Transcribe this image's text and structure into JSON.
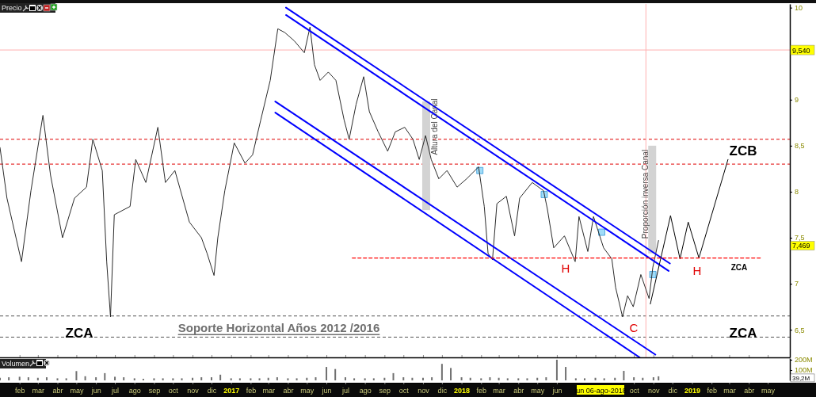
{
  "chart_data": [
    {
      "type": "line",
      "title": "Precio",
      "xlim": [
        "2016-01-01",
        "2019-06-05"
      ],
      "ylim": [
        6.2,
        10.04
      ],
      "yticks": [
        {
          "value": 6.5,
          "label": "6,5"
        },
        7,
        {
          "value": 7.5,
          "label": "7,5"
        },
        8,
        {
          "value": 8.5,
          "label": "8,5"
        },
        9,
        10
      ],
      "tick_labels": "y",
      "xticks": [
        {
          "value": "2016-02-01",
          "label": null
        },
        {
          "value": "2016-03-01",
          "label": null
        },
        {
          "value": "2016-04-01",
          "label": null
        },
        {
          "value": "2016-05-01",
          "label": null
        },
        {
          "value": "2016-06-01",
          "label": null
        },
        {
          "value": "2016-07-01",
          "label": null
        },
        {
          "value": "2016-08-01",
          "label": null
        },
        {
          "value": "2016-09-01",
          "label": null
        },
        {
          "value": "2016-10-01",
          "label": null
        },
        {
          "value": "2016-11-01",
          "label": null
        },
        {
          "value": "2016-12-01",
          "label": null
        },
        {
          "value": "2017-01-01",
          "label": null
        },
        {
          "value": "2017-02-01",
          "label": null
        },
        {
          "value": "2017-03-01",
          "label": null
        },
        {
          "value": "2017-04-01",
          "label": null
        },
        {
          "value": "2017-05-01",
          "label": null
        },
        {
          "value": "2017-06-01",
          "label": null
        },
        {
          "value": "2017-07-01",
          "label": null
        },
        {
          "value": "2017-08-01",
          "label": null
        },
        {
          "value": "2017-09-01",
          "label": null
        },
        {
          "value": "2017-10-01",
          "label": null
        },
        {
          "value": "2017-11-01",
          "label": null
        },
        {
          "value": "2017-12-01",
          "label": null
        },
        {
          "value": "2018-01-01",
          "label": null
        },
        {
          "value": "2018-02-01",
          "label": null
        },
        {
          "value": "2018-03-01",
          "label": null
        },
        {
          "value": "2018-04-01",
          "label": null
        },
        {
          "value": "2018-05-01",
          "label": null
        },
        {
          "value": "2018-06-01",
          "label": null
        },
        {
          "value": "2018-07-01",
          "label": null
        },
        {
          "value": "2018-08-01",
          "label": null
        },
        {
          "value": "2018-09-01",
          "label": null
        },
        {
          "value": "2018-10-01",
          "label": null
        },
        {
          "value": "2018-11-01",
          "label": null
        },
        {
          "value": "2018-12-01",
          "label": null
        },
        {
          "value": "2019-01-01",
          "label": null
        },
        {
          "value": "2019-02-01",
          "label": null
        },
        {
          "value": "2019-03-01",
          "label": null
        },
        {
          "value": "2019-04-01",
          "label": null
        },
        {
          "value": "2019-05-01",
          "label": null
        }
      ],
      "series": [
        {
          "type": "bar",
          "color": "#d3d3d3",
          "x": [
            "2017-11-06",
            "2018-10-30"
          ],
          "base": [
            7.8,
            7.33
          ],
          "values": [
            1.18,
            1.17
          ]
        },
        {
          "type": "scatter",
          "marker": "square",
          "color": "#a0dcf8",
          "x": [
            "2018-01-30",
            "2018-05-12",
            "2018-08-11",
            "2018-10-31"
          ],
          "values": [
            8.23,
            7.97,
            7.56,
            7.1
          ]
        },
        {
          "type": "line",
          "color": "#2b2b2b",
          "x": [
            "2016-01-01",
            "2016-01-12",
            "2016-02-04",
            "2016-02-19",
            "2016-03-09",
            "2016-03-21",
            "2016-04-09",
            "2016-04-28",
            "2016-05-17",
            "2016-05-27",
            "2016-06-11",
            "2016-06-18",
            "2016-06-24",
            "2016-06-30",
            "2016-07-25",
            "2016-08-03",
            "2016-08-19",
            "2016-09-07",
            "2016-09-19",
            "2016-10-04",
            "2016-10-27",
            "2016-11-15",
            "2016-11-24",
            "2016-12-05",
            "2016-12-11",
            "2016-12-22",
            "2017-01-06",
            "2017-01-23",
            "2017-02-04",
            "2017-02-17",
            "2017-03-04",
            "2017-03-16",
            "2017-03-27",
            "2017-04-11",
            "2017-04-27",
            "2017-05-06",
            "2017-05-13",
            "2017-05-22",
            "2017-06-04",
            "2017-06-16",
            "2017-06-29",
            "2017-07-07",
            "2017-07-18",
            "2017-07-30",
            "2017-08-08",
            "2017-08-22",
            "2017-09-06",
            "2017-09-18",
            "2017-10-03",
            "2017-10-16",
            "2017-10-26",
            "2017-11-05",
            "2017-11-14",
            "2017-11-26",
            "2017-12-09",
            "2017-12-25",
            "2018-01-09",
            "2018-01-28",
            "2018-02-06",
            "2018-02-12",
            "2018-02-19",
            "2018-02-26",
            "2018-03-13",
            "2018-03-26",
            "2018-04-03",
            "2018-04-23",
            "2018-05-11",
            "2018-05-17",
            "2018-05-27",
            "2018-06-13",
            "2018-06-30",
            "2018-07-06",
            "2018-07-20",
            "2018-07-29",
            "2018-08-14",
            "2018-08-27",
            "2018-09-02",
            "2018-09-13",
            "2018-09-21",
            "2018-09-30",
            "2018-10-12",
            "2018-10-25",
            "2018-10-31",
            "2018-11-09"
          ],
          "values": [
            8.48,
            7.93,
            7.24,
            8.01,
            8.83,
            8.18,
            7.5,
            7.93,
            8.05,
            8.57,
            8.23,
            7.24,
            6.64,
            7.75,
            7.84,
            8.35,
            8.1,
            8.7,
            8.1,
            8.23,
            7.67,
            7.5,
            7.33,
            7.09,
            7.5,
            8.01,
            8.53,
            8.31,
            8.4,
            8.78,
            9.21,
            9.77,
            9.73,
            9.64,
            9.51,
            9.79,
            9.38,
            9.21,
            9.3,
            9.21,
            8.78,
            8.57,
            8.95,
            9.25,
            8.87,
            8.65,
            8.44,
            8.65,
            8.7,
            8.57,
            8.35,
            8.61,
            8.35,
            8.14,
            8.23,
            8.05,
            8.14,
            8.27,
            7.84,
            7.33,
            7.26,
            7.87,
            7.95,
            7.52,
            7.93,
            8.1,
            8.01,
            7.81,
            7.39,
            7.52,
            7.24,
            7.73,
            7.35,
            7.73,
            7.39,
            7.27,
            6.96,
            6.64,
            6.87,
            6.75,
            7.1,
            6.84,
            7.18,
            7.47
          ]
        },
        {
          "type": "line",
          "color": "#0000ff",
          "x": [
            "2017-03-29",
            "2018-11-27"
          ],
          "values": [
            10.0,
            7.22
          ]
        },
        {
          "type": "line",
          "color": "#0000ff",
          "x": [
            "2017-03-29",
            "2018-11-25"
          ],
          "values": [
            9.92,
            7.14
          ]
        },
        {
          "type": "line",
          "color": "#0000ff",
          "x": [
            "2017-03-12",
            "2018-11-04"
          ],
          "values": [
            8.98,
            6.23
          ]
        },
        {
          "type": "line",
          "color": "#0000ff",
          "x": [
            "2017-03-12",
            "2018-10-10"
          ],
          "values": [
            8.86,
            6.2
          ]
        },
        {
          "type": "line",
          "color": "#000000",
          "x": [
            "2018-10-27",
            "2018-11-28",
            "2018-12-13",
            "2018-12-26",
            "2019-01-12",
            "2019-02-27"
          ],
          "values": [
            6.78,
            7.74,
            7.27,
            7.67,
            7.28,
            8.35
          ]
        },
        {
          "type": "line",
          "color": "#ff0000",
          "line_style": "dashed",
          "x": [
            "2017-07-12",
            "2019-04-22"
          ],
          "values": [
            7.28,
            7.28
          ]
        }
      ],
      "ref_lines": [
        {
          "axis": "y",
          "value": 8.57,
          "color": "#e00000",
          "line_style": "dashed"
        },
        {
          "axis": "y",
          "value": 8.3,
          "color": "#e00000",
          "line_style": "dashed"
        },
        {
          "axis": "y",
          "value": 6.65,
          "color": "#555555",
          "line_style": "dashed"
        },
        {
          "axis": "y",
          "value": 6.42,
          "color": "#555555",
          "line_style": "dashed"
        },
        {
          "axis": "y",
          "value": 9.54,
          "color": "#ffb0b0",
          "label": "9,540"
        },
        {
          "axis": "x",
          "value": "2018-10-20",
          "color": "#ffb0b0"
        }
      ],
      "annotations": [
        "ZCB",
        "ZCA",
        "Soporte Horizontal Años  2012 /2016",
        "H",
        "C",
        "H",
        "ZCA",
        "ZCA",
        "Altura del Canal",
        "Proporción inversa Canal",
        "7,469"
      ]
    },
    {
      "type": "bar",
      "title": "Volumen",
      "color": "#707070",
      "xlim": [
        "2016-01-01",
        "2019-06-05"
      ],
      "ylim": [
        0,
        215
      ],
      "yticks": [
        {
          "value": 100,
          "label": "100M"
        },
        {
          "value": 200,
          "label": "200M"
        }
      ],
      "xticks": [
        {
          "value": "2016-02-01",
          "label": "feb"
        },
        {
          "value": "2016-03-01",
          "label": "mar"
        },
        {
          "value": "2016-04-01",
          "label": "abr"
        },
        {
          "value": "2016-05-01",
          "label": "may"
        },
        {
          "value": "2016-06-01",
          "label": "jun"
        },
        {
          "value": "2016-07-01",
          "label": "jul"
        },
        {
          "value": "2016-08-01",
          "label": "ago"
        },
        {
          "value": "2016-09-01",
          "label": "sep"
        },
        {
          "value": "2016-10-01",
          "label": "oct"
        },
        {
          "value": "2016-11-01",
          "label": "nov"
        },
        {
          "value": "2016-12-01",
          "label": "dic"
        },
        {
          "value": "2017-01-01",
          "label": "2017"
        },
        {
          "value": "2017-02-01",
          "label": "feb"
        },
        {
          "value": "2017-03-01",
          "label": "mar"
        },
        {
          "value": "2017-04-01",
          "label": "abr"
        },
        {
          "value": "2017-05-01",
          "label": "may"
        },
        {
          "value": "2017-06-01",
          "label": "jun"
        },
        {
          "value": "2017-07-01",
          "label": "jul"
        },
        {
          "value": "2017-08-01",
          "label": "ago"
        },
        {
          "value": "2017-09-01",
          "label": "sep"
        },
        {
          "value": "2017-10-01",
          "label": "oct"
        },
        {
          "value": "2017-11-01",
          "label": "nov"
        },
        {
          "value": "2017-12-01",
          "label": "dic"
        },
        {
          "value": "2018-01-01",
          "label": "2018"
        },
        {
          "value": "2018-02-01",
          "label": "feb"
        },
        {
          "value": "2018-03-01",
          "label": "mar"
        },
        {
          "value": "2018-04-01",
          "label": "abr"
        },
        {
          "value": "2018-05-01",
          "label": "may"
        },
        {
          "value": "2018-06-01",
          "label": "jun"
        },
        {
          "value": "2018-10-01",
          "label": "oct"
        },
        {
          "value": "2018-11-01",
          "label": "nov"
        },
        {
          "value": "2018-12-01",
          "label": "dic"
        },
        {
          "value": "2019-01-01",
          "label": "2019"
        },
        {
          "value": "2019-02-01",
          "label": "feb"
        },
        {
          "value": "2019-03-01",
          "label": "mar"
        },
        {
          "value": "2019-04-01",
          "label": "abr"
        },
        {
          "value": "2019-05-01",
          "label": "may"
        }
      ],
      "x": [
        "2016-01-01",
        "2016-01-15",
        "2016-02-01",
        "2016-02-15",
        "2016-03-01",
        "2016-03-15",
        "2016-04-01",
        "2016-04-15",
        "2016-05-01",
        "2016-05-15",
        "2016-06-01",
        "2016-06-15",
        "2016-07-01",
        "2016-07-15",
        "2016-08-01",
        "2016-08-15",
        "2016-09-01",
        "2016-09-15",
        "2016-10-01",
        "2016-10-15",
        "2016-11-01",
        "2016-11-15",
        "2016-12-01",
        "2016-12-15",
        "2017-01-01",
        "2017-01-15",
        "2017-02-01",
        "2017-02-15",
        "2017-03-01",
        "2017-03-15",
        "2017-04-01",
        "2017-04-15",
        "2017-05-01",
        "2017-05-15",
        "2017-06-01",
        "2017-06-15",
        "2017-07-01",
        "2017-07-15",
        "2017-08-01",
        "2017-08-15",
        "2017-09-01",
        "2017-09-15",
        "2017-10-01",
        "2017-10-15",
        "2017-11-01",
        "2017-11-15",
        "2017-12-01",
        "2017-12-15",
        "2018-01-01",
        "2018-01-15",
        "2018-02-01",
        "2018-02-15",
        "2018-03-01",
        "2018-03-15",
        "2018-04-01",
        "2018-04-15",
        "2018-05-01",
        "2018-05-15",
        "2018-06-01",
        "2018-06-15",
        "2018-07-01",
        "2018-07-15",
        "2018-08-01",
        "2018-08-15",
        "2018-09-01",
        "2018-09-15",
        "2018-10-01",
        "2018-10-15",
        "2018-11-01",
        "2018-11-09"
      ],
      "values": [
        25,
        30,
        35,
        30,
        25,
        30,
        20,
        20,
        90,
        40,
        30,
        70,
        35,
        30,
        20,
        15,
        20,
        20,
        20,
        20,
        25,
        30,
        30,
        55,
        20,
        20,
        20,
        20,
        25,
        30,
        20,
        20,
        25,
        30,
        130,
        110,
        30,
        20,
        20,
        20,
        25,
        70,
        30,
        25,
        25,
        30,
        160,
        120,
        30,
        25,
        20,
        30,
        25,
        20,
        20,
        20,
        25,
        30,
        200,
        130,
        20,
        20,
        25,
        20,
        25,
        92,
        30,
        25,
        30,
        39
      ],
      "annotations": [
        "39,2M",
        "lun 06-ago-2018"
      ]
    }
  ]
}
